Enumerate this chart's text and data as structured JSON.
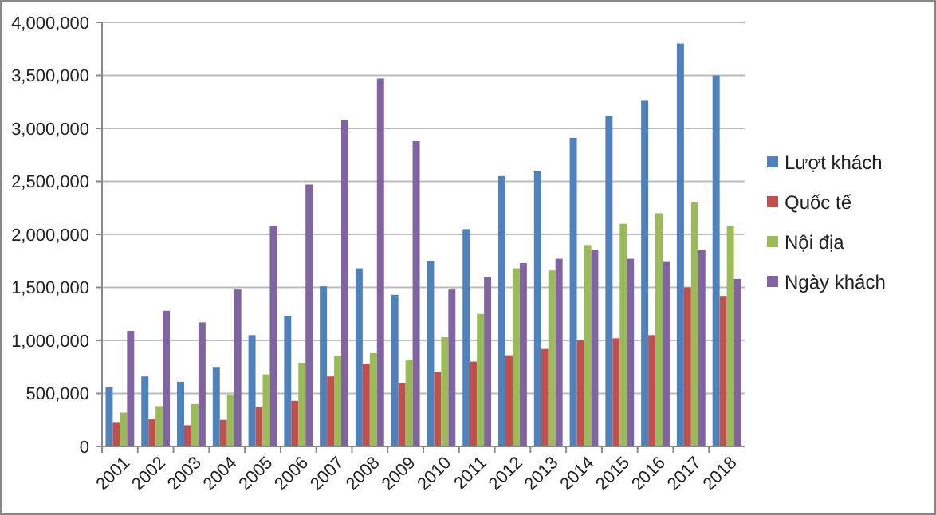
{
  "chart_data": {
    "type": "bar",
    "categories": [
      "2001",
      "2002",
      "2003",
      "2004",
      "2005",
      "2006",
      "2007",
      "2008",
      "2009",
      "2010",
      "2011",
      "2012",
      "2013",
      "2014",
      "2015",
      "2016",
      "2017",
      "2018"
    ],
    "series": [
      {
        "name": "Lượt khách",
        "color": "#4f81bd",
        "values": [
          560000,
          660000,
          610000,
          750000,
          1050000,
          1230000,
          1510000,
          1680000,
          1430000,
          1750000,
          2050000,
          2550000,
          2600000,
          2910000,
          3120000,
          3260000,
          3800000,
          3500000
        ]
      },
      {
        "name": "Quốc tế",
        "color": "#c0504d",
        "values": [
          230000,
          260000,
          200000,
          250000,
          370000,
          430000,
          660000,
          780000,
          600000,
          700000,
          800000,
          860000,
          920000,
          1000000,
          1020000,
          1050000,
          1500000,
          1420000
        ]
      },
      {
        "name": "Nội địa",
        "color": "#9bbb59",
        "values": [
          320000,
          380000,
          400000,
          490000,
          680000,
          790000,
          850000,
          880000,
          820000,
          1030000,
          1250000,
          1680000,
          1660000,
          1900000,
          2100000,
          2200000,
          2300000,
          2080000
        ]
      },
      {
        "name": "Ngày khách",
        "color": "#8064a2",
        "values": [
          1090000,
          1280000,
          1170000,
          1480000,
          2080000,
          2470000,
          3080000,
          3470000,
          2880000,
          1480000,
          1600000,
          1730000,
          1770000,
          1850000,
          1770000,
          1740000,
          1850000,
          1580000
        ]
      }
    ],
    "ylim": [
      0,
      4000000
    ],
    "yticks": [
      {
        "value": 0,
        "label": "0"
      },
      {
        "value": 500000,
        "label": "500,000"
      },
      {
        "value": 1000000,
        "label": "1,000,000"
      },
      {
        "value": 1500000,
        "label": "1,500,000"
      },
      {
        "value": 2000000,
        "label": "2,000,000"
      },
      {
        "value": 2500000,
        "label": "2,500,000"
      },
      {
        "value": 3000000,
        "label": "3,000,000"
      },
      {
        "value": 3500000,
        "label": "3,500,000"
      },
      {
        "value": 4000000,
        "label": "4,000,000"
      }
    ],
    "grid": "y",
    "legend": "right"
  }
}
